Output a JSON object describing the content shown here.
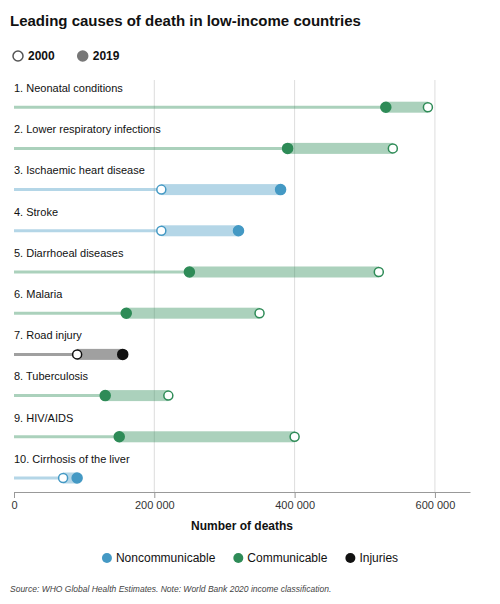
{
  "chart_data": {
    "type": "dumbbell",
    "title": "Leading causes of death in low-income countries",
    "orientation": "horizontal",
    "categories": [
      "1. Neonatal conditions",
      "2. Lower respiratory infections",
      "3. Ischaemic heart disease",
      "4. Stroke",
      "5. Diarrhoeal diseases",
      "6. Malaria",
      "7. Road injury",
      "8. Tuberculosis",
      "9. HIV/AIDS",
      "10. Cirrhosis of the liver"
    ],
    "series": [
      {
        "name": "2000",
        "marker": "open_circle",
        "values": [
          590000,
          540000,
          210000,
          210000,
          520000,
          350000,
          90000,
          220000,
          400000,
          70000
        ]
      },
      {
        "name": "2019",
        "marker": "circle",
        "values": [
          530000,
          390000,
          380000,
          320000,
          250000,
          160000,
          155000,
          130000,
          150000,
          90000
        ]
      }
    ],
    "colors": [
      "#2e8b57",
      "#2e8b57",
      "#4499c4",
      "#4499c4",
      "#2e8b57",
      "#2e8b57",
      "#111111",
      "#2e8b57",
      "#2e8b57",
      "#4499c4"
    ],
    "groups": [
      {
        "name": "Noncommunicable",
        "color": "#4499c4"
      },
      {
        "name": "Communicable",
        "color": "#2e8b57"
      },
      {
        "name": "Injuries",
        "color": "#111111"
      }
    ],
    "xlabel": "Number of deaths",
    "xlim": [
      0,
      650000
    ],
    "xticks": [
      0,
      {
        "value": 200000,
        "label": "200 000"
      },
      {
        "value": 400000,
        "label": "400 000"
      },
      {
        "value": 600000,
        "label": "600 000"
      }
    ],
    "grid": true,
    "source": "Source: WHO Global Health Estimates. Note: World Bank 2020 income classification."
  }
}
